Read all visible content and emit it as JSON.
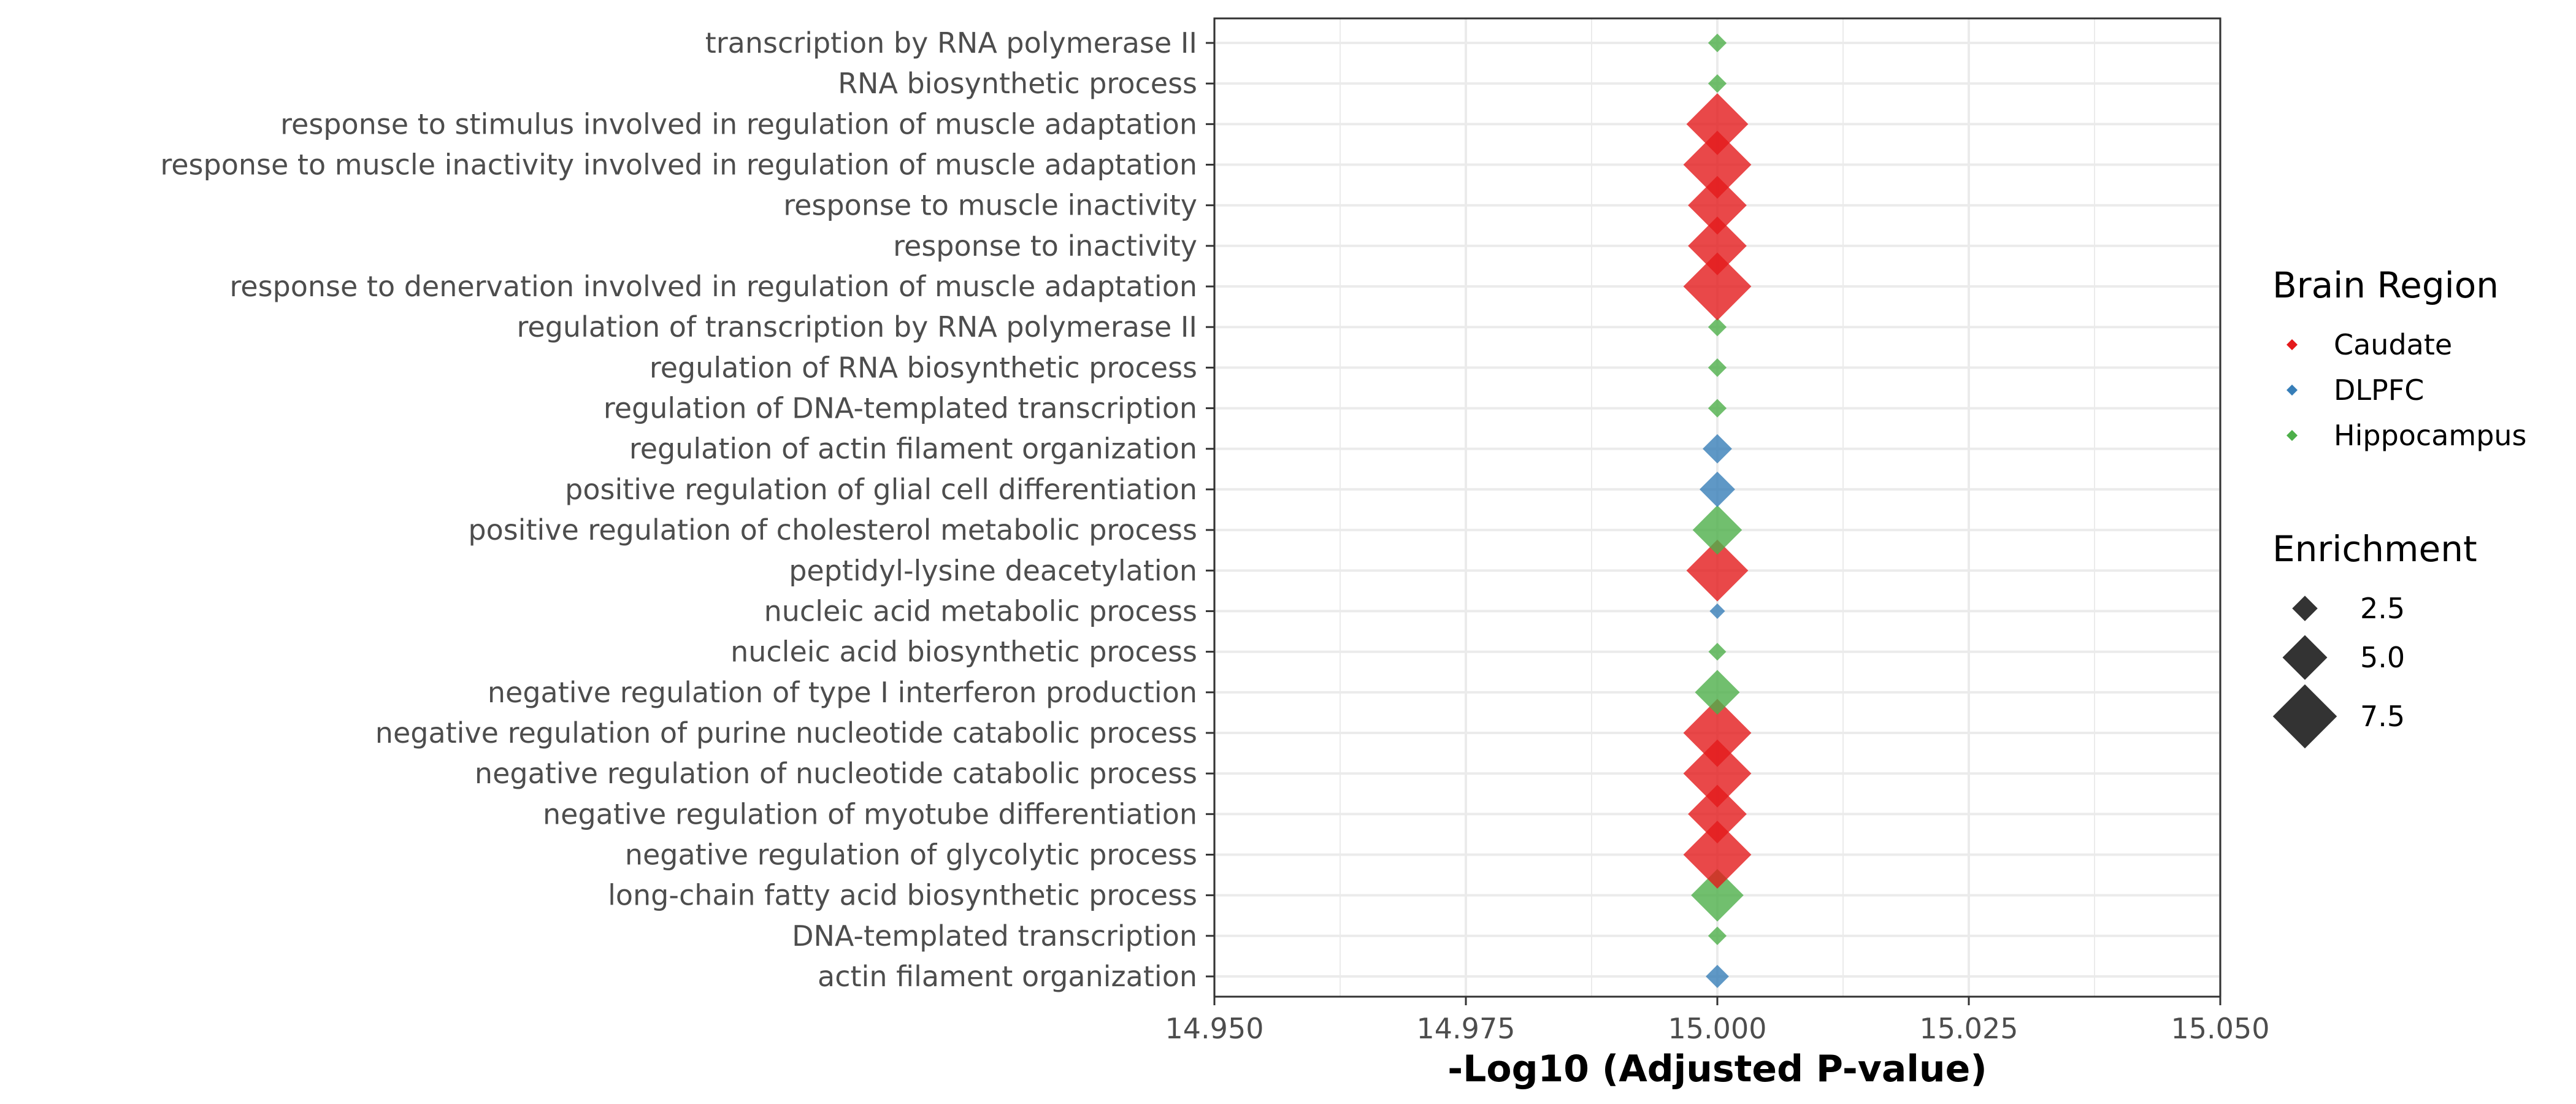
{
  "chart_data": {
    "type": "scatter",
    "xlabel": "-Log10 (Adjusted P-value)",
    "xlim": [
      14.95,
      15.05
    ],
    "x_ticks": [
      "14.950",
      "14.975",
      "15.000",
      "15.025",
      "15.050"
    ],
    "x_tick_values": [
      14.95,
      14.975,
      15.0,
      15.025,
      15.05
    ],
    "marker": "diamond",
    "grid": true,
    "categories": [
      "actin filament organization",
      "DNA-templated transcription",
      "long-chain fatty acid biosynthetic process",
      "negative regulation of glycolytic process",
      "negative regulation of myotube differentiation",
      "negative regulation of nucleotide catabolic process",
      "negative regulation of purine nucleotide catabolic process",
      "negative regulation of type I interferon production",
      "nucleic acid biosynthetic process",
      "nucleic acid metabolic process",
      "peptidyl-lysine deacetylation",
      "positive regulation of cholesterol metabolic process",
      "positive regulation of glial cell differentiation",
      "regulation of actin filament organization",
      "regulation of DNA-templated transcription",
      "regulation of RNA biosynthetic process",
      "regulation of transcription by RNA polymerase II",
      "response to denervation involved in regulation of muscle adaptation",
      "response to inactivity",
      "response to muscle inactivity",
      "response to muscle inactivity involved in regulation of muscle adaptation",
      "response to stimulus involved in regulation of muscle adaptation",
      "RNA biosynthetic process",
      "transcription by RNA polymerase II"
    ],
    "points": [
      {
        "term": "actin filament organization",
        "x": 15.0,
        "region": "DLPFC",
        "enrichment": 2.2
      },
      {
        "term": "DNA-templated transcription",
        "x": 15.0,
        "region": "Hippocampus",
        "enrichment": 1.6
      },
      {
        "term": "long-chain fatty acid biosynthetic process",
        "x": 15.0,
        "region": "Hippocampus",
        "enrichment": 6.0
      },
      {
        "term": "negative regulation of glycolytic process",
        "x": 15.0,
        "region": "Caudate",
        "enrichment": 8.0
      },
      {
        "term": "negative regulation of myotube differentiation",
        "x": 15.0,
        "region": "Caudate",
        "enrichment": 6.8
      },
      {
        "term": "negative regulation of nucleotide catabolic process",
        "x": 15.0,
        "region": "Caudate",
        "enrichment": 8.0
      },
      {
        "term": "negative regulation of purine nucleotide catabolic process",
        "x": 15.0,
        "region": "Caudate",
        "enrichment": 8.0
      },
      {
        "term": "negative regulation of type I interferon production",
        "x": 15.0,
        "region": "Hippocampus",
        "enrichment": 5.0
      },
      {
        "term": "nucleic acid biosynthetic process",
        "x": 15.0,
        "region": "Hippocampus",
        "enrichment": 1.5
      },
      {
        "term": "nucleic acid metabolic process",
        "x": 15.0,
        "region": "DLPFC",
        "enrichment": 1.2
      },
      {
        "term": "peptidyl-lysine deacetylation",
        "x": 15.0,
        "region": "Caudate",
        "enrichment": 7.2
      },
      {
        "term": "positive regulation of cholesterol metabolic process",
        "x": 15.0,
        "region": "Hippocampus",
        "enrichment": 5.6
      },
      {
        "term": "positive regulation of glial cell differentiation",
        "x": 15.0,
        "region": "DLPFC",
        "enrichment": 3.8
      },
      {
        "term": "regulation of actin filament organization",
        "x": 15.0,
        "region": "DLPFC",
        "enrichment": 3.0
      },
      {
        "term": "regulation of DNA-templated transcription",
        "x": 15.0,
        "region": "Hippocampus",
        "enrichment": 1.6
      },
      {
        "term": "regulation of RNA biosynthetic process",
        "x": 15.0,
        "region": "Hippocampus",
        "enrichment": 1.6
      },
      {
        "term": "regulation of transcription by RNA polymerase II",
        "x": 15.0,
        "region": "Hippocampus",
        "enrichment": 1.6
      },
      {
        "term": "response to denervation involved in regulation of muscle adaptation",
        "x": 15.0,
        "region": "Caudate",
        "enrichment": 8.0
      },
      {
        "term": "response to inactivity",
        "x": 15.0,
        "region": "Caudate",
        "enrichment": 6.8
      },
      {
        "term": "response to muscle inactivity",
        "x": 15.0,
        "region": "Caudate",
        "enrichment": 6.8
      },
      {
        "term": "response to muscle inactivity involved in regulation of muscle adaptation",
        "x": 15.0,
        "region": "Caudate",
        "enrichment": 8.0
      },
      {
        "term": "response to stimulus involved in regulation of muscle adaptation",
        "x": 15.0,
        "region": "Caudate",
        "enrichment": 7.2
      },
      {
        "term": "RNA biosynthetic process",
        "x": 15.0,
        "region": "Hippocampus",
        "enrichment": 1.6
      },
      {
        "term": "transcription by RNA polymerase II",
        "x": 15.0,
        "region": "Hippocampus",
        "enrichment": 1.6
      }
    ],
    "legend_color": {
      "title": "Brain Region",
      "items": [
        {
          "label": "Caudate",
          "color": "#e41a1c"
        },
        {
          "label": "DLPFC",
          "color": "#377eb8"
        },
        {
          "label": "Hippocampus",
          "color": "#4daf4a"
        }
      ]
    },
    "legend_size": {
      "title": "Enrichment",
      "items": [
        {
          "label": "2.5",
          "value": 2.5
        },
        {
          "label": "5.0",
          "value": 5.0
        },
        {
          "label": "7.5",
          "value": 7.5
        }
      ]
    },
    "legend_placement": "right",
    "colors": {
      "Caudate": "#e41a1c",
      "DLPFC": "#377eb8",
      "Hippocampus": "#4daf4a"
    }
  }
}
